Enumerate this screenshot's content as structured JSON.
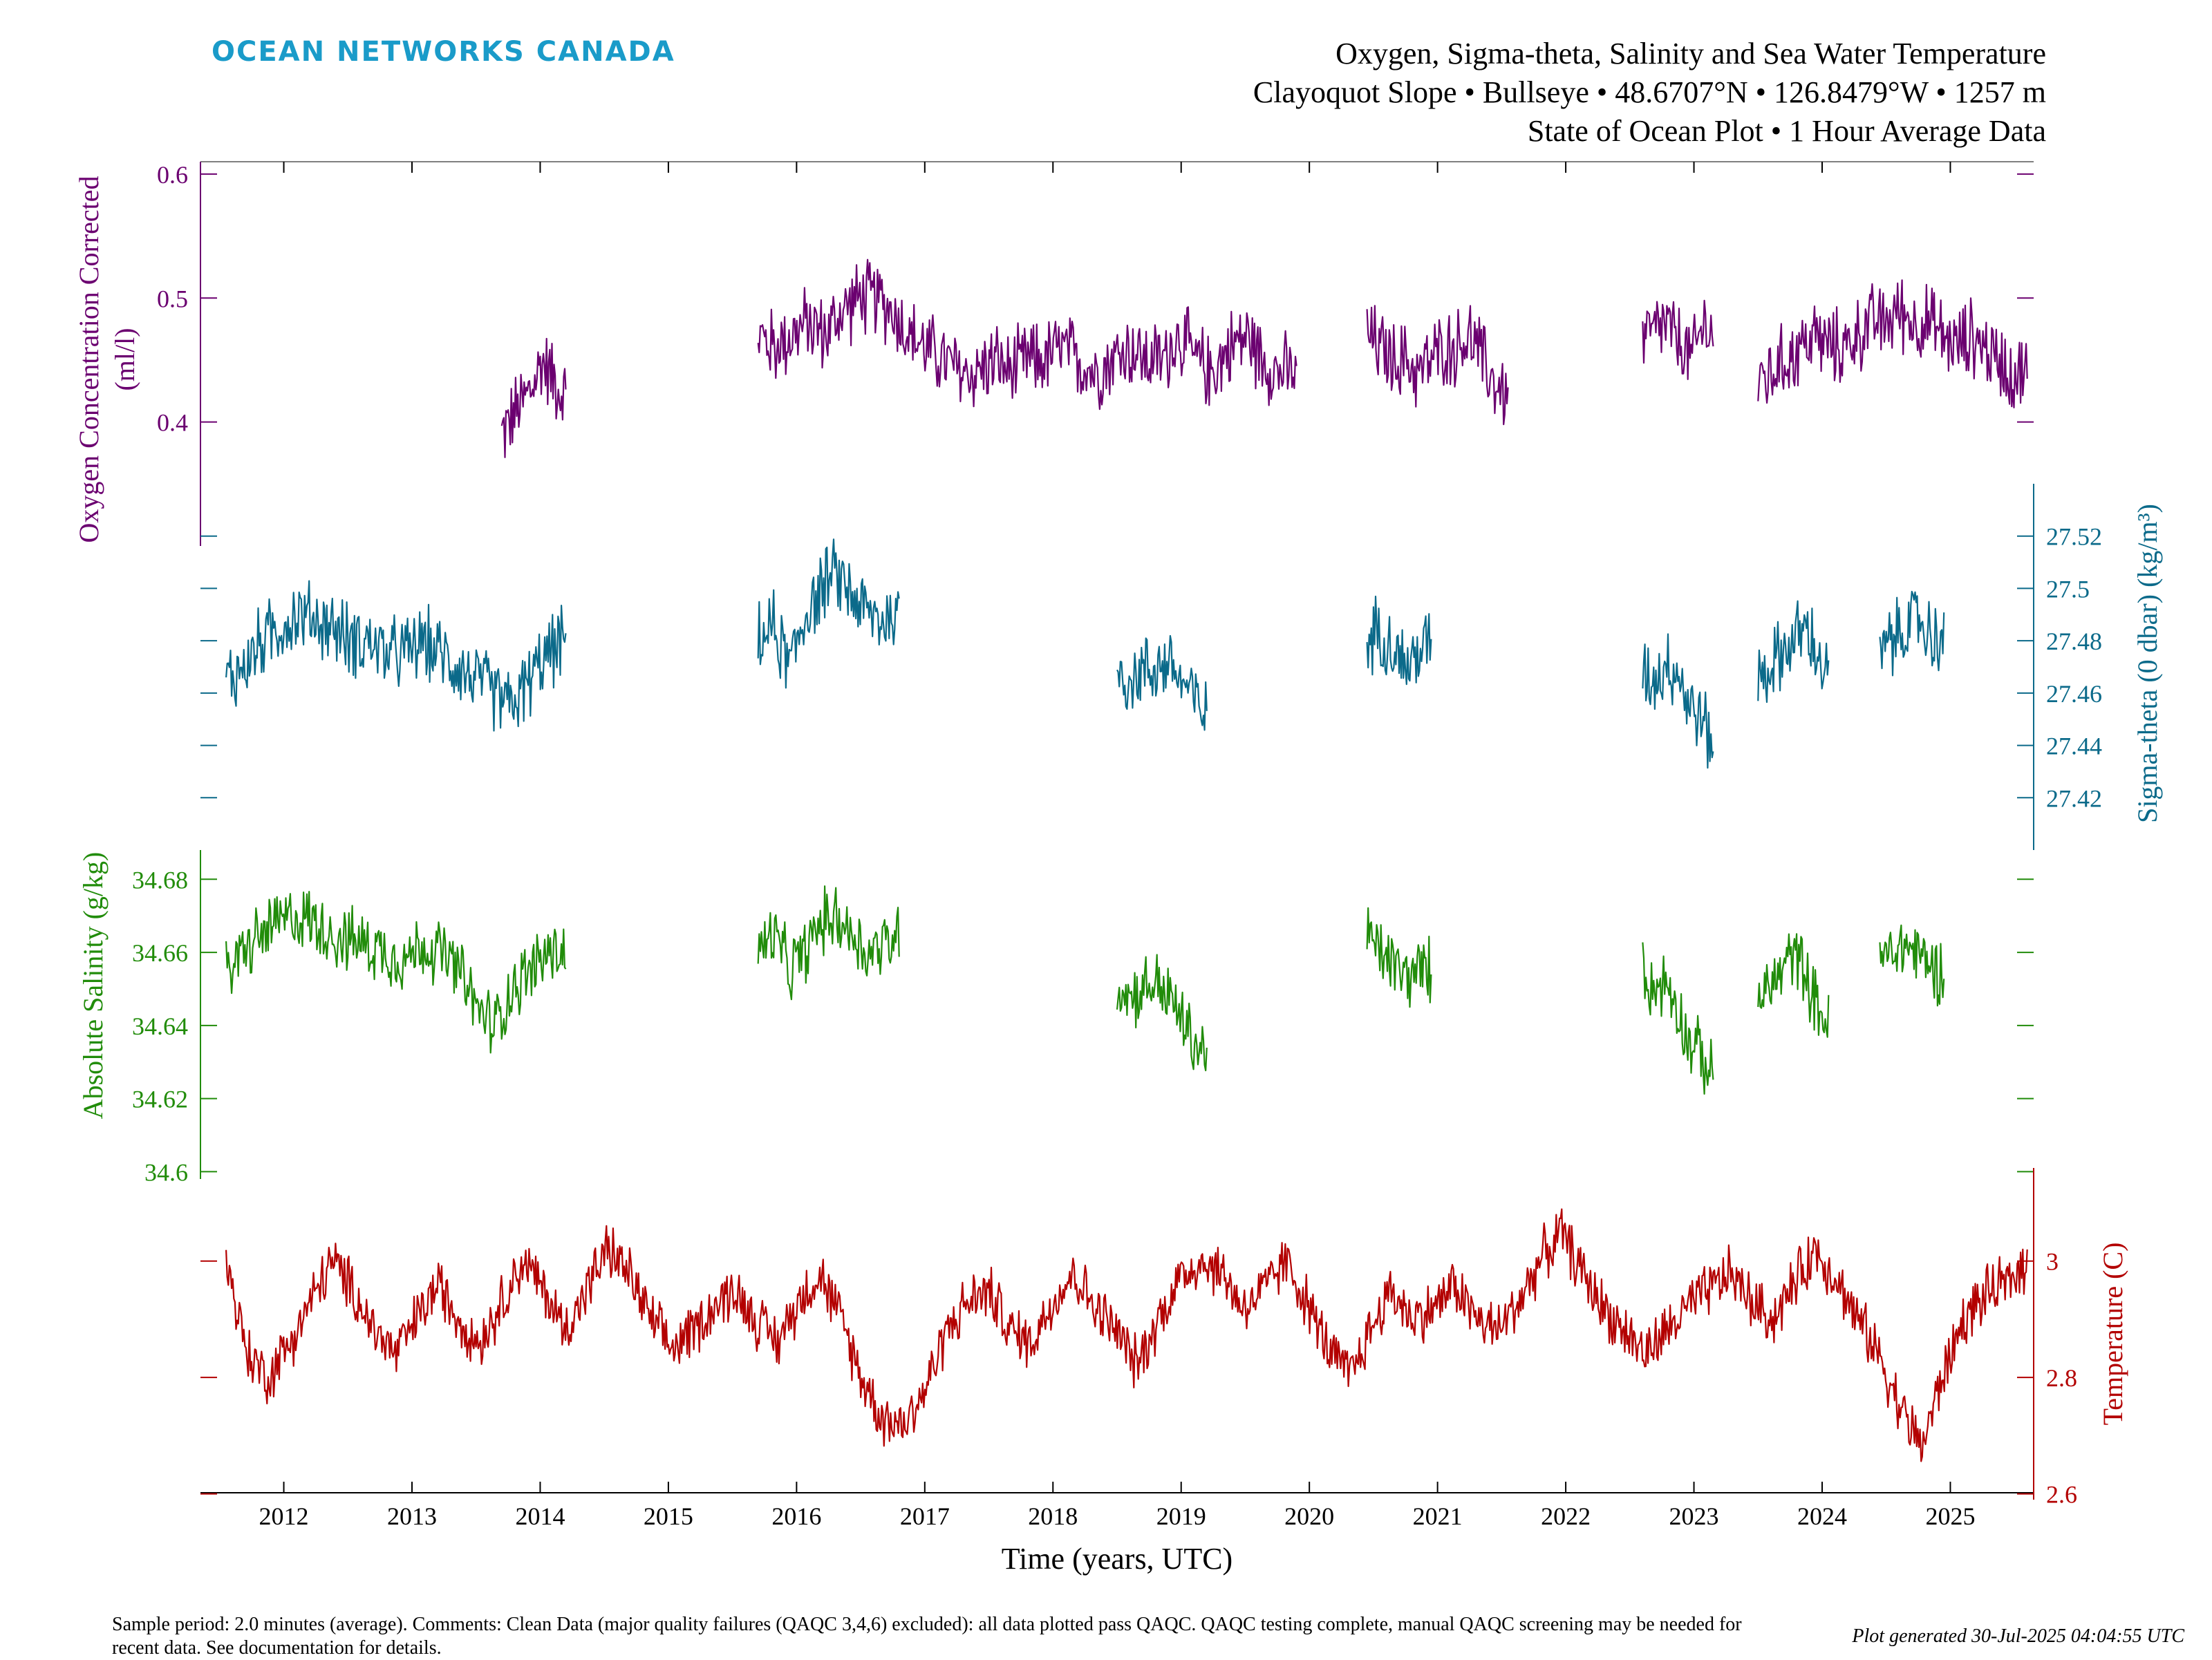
{
  "brand": {
    "text": "OCEAN NETWORKS CANADA",
    "color": "#1a9bc9"
  },
  "title": {
    "line1": "Oxygen, Sigma-theta, Salinity and Sea Water Temperature",
    "line2": "Clayoquot Slope • Bullseye • 48.6707°N • 126.8479°W • 1257 m",
    "line3": "State of Ocean Plot • 1 Hour Average Data"
  },
  "footer": {
    "comment": "Sample period: 2.0 minutes (average). Comments: Clean Data (major quality failures (QAQC 3,4,6) excluded): all data plotted pass QAQC. QAQC testing complete, manual QAQC screening may be needed for recent data. See documentation for details.",
    "generated": "Plot generated 30-Jul-2025 04:04:55 UTC"
  },
  "chart_data": {
    "type": "line",
    "xlabel": "Time (years, UTC)",
    "xlim": [
      2011.35,
      2025.65
    ],
    "xticks": [
      "2012",
      "2013",
      "2014",
      "2015",
      "2016",
      "2017",
      "2018",
      "2019",
      "2020",
      "2021",
      "2022",
      "2023",
      "2024",
      "2025"
    ],
    "grid": false,
    "series": [
      {
        "key": "oxygen",
        "ylabel_line1": "Oxygen Concentration Corrected",
        "ylabel_line2": "(ml/l)",
        "color": "#6b0070",
        "axis_side": "left",
        "ylim": [
          0.3,
          0.61
        ],
        "ticks": [
          "0.4",
          "0.5",
          "0.6"
        ],
        "segments": [
          {
            "start": 2013.7,
            "end": 2014.2,
            "values": [
              0.39,
              0.4,
              0.41,
              0.42,
              0.43,
              0.45,
              0.44,
              0.43,
              0.42
            ]
          },
          {
            "start": 2015.7,
            "end": 2019.9,
            "values": [
              0.47,
              0.46,
              0.47,
              0.48,
              0.47,
              0.49,
              0.5,
              0.5,
              0.49,
              0.47,
              0.46,
              0.45,
              0.44,
              0.44,
              0.45,
              0.44,
              0.45,
              0.45,
              0.46,
              0.45,
              0.44,
              0.45,
              0.46,
              0.45,
              0.45,
              0.47,
              0.45,
              0.44,
              0.46,
              0.47,
              0.45,
              0.44,
              0.44
            ]
          },
          {
            "start": 2020.45,
            "end": 2021.55,
            "values": [
              0.47,
              0.46,
              0.45,
              0.45,
              0.44,
              0.45,
              0.46,
              0.46,
              0.47,
              0.45,
              0.43,
              0.42
            ]
          },
          {
            "start": 2022.6,
            "end": 2023.15,
            "values": [
              0.47,
              0.47,
              0.48,
              0.47,
              0.46,
              0.45,
              0.48,
              0.47
            ]
          },
          {
            "start": 2023.5,
            "end": 2025.6,
            "values": [
              0.43,
              0.44,
              0.45,
              0.46,
              0.47,
              0.46,
              0.46,
              0.47,
              0.48,
              0.48,
              0.49,
              0.48,
              0.48,
              0.47,
              0.46,
              0.47,
              0.46,
              0.45,
              0.44,
              0.44
            ]
          }
        ]
      },
      {
        "key": "sigma",
        "ylabel": "Sigma-theta (0 dbar) (kg/m³)",
        "color": "#0b6a8a",
        "axis_side": "right",
        "ylim": [
          27.4,
          27.54
        ],
        "ticks": [
          "27.42",
          "27.44",
          "27.46",
          "27.48",
          "27.5",
          "27.52"
        ],
        "segments": [
          {
            "start": 2011.55,
            "end": 2014.2,
            "values": [
              27.465,
              27.47,
              27.48,
              27.485,
              27.49,
              27.488,
              27.485,
              27.48,
              27.48,
              27.475,
              27.475,
              27.48,
              27.475,
              27.47,
              27.465,
              27.46,
              27.455,
              27.465,
              27.475,
              27.48
            ]
          },
          {
            "start": 2015.7,
            "end": 2016.8,
            "values": [
              27.48,
              27.485,
              27.47,
              27.49,
              27.5,
              27.505,
              27.498,
              27.49,
              27.488,
              27.49
            ]
          },
          {
            "start": 2018.5,
            "end": 2019.2,
            "values": [
              27.47,
              27.465,
              27.468,
              27.47,
              27.472,
              27.465,
              27.458,
              27.45
            ]
          },
          {
            "start": 2020.45,
            "end": 2020.95,
            "values": [
              27.48,
              27.485,
              27.478,
              27.47,
              27.475,
              27.48
            ]
          },
          {
            "start": 2022.6,
            "end": 2023.15,
            "values": [
              27.47,
              27.465,
              27.472,
              27.468,
              27.455,
              27.45,
              27.44
            ]
          },
          {
            "start": 2023.5,
            "end": 2024.05,
            "values": [
              27.465,
              27.47,
              27.475,
              27.48,
              27.485,
              27.475,
              27.465
            ]
          },
          {
            "start": 2024.45,
            "end": 2024.95,
            "values": [
              27.475,
              27.48,
              27.485,
              27.488,
              27.482,
              27.48
            ]
          }
        ]
      },
      {
        "key": "salinity",
        "ylabel": "Absolute Salinity (g/kg)",
        "color": "#218c0a",
        "axis_side": "left",
        "ylim": [
          34.598,
          34.688
        ],
        "ticks": [
          "34.6",
          "34.62",
          "34.64",
          "34.66",
          "34.68"
        ],
        "segments": [
          {
            "start": 2011.55,
            "end": 2014.2,
            "values": [
              34.655,
              34.66,
              34.665,
              34.668,
              34.67,
              34.668,
              34.665,
              34.663,
              34.662,
              34.66,
              34.658,
              34.662,
              34.66,
              34.655,
              34.645,
              34.64,
              34.65,
              34.655,
              34.66,
              34.66
            ]
          },
          {
            "start": 2015.7,
            "end": 2016.8,
            "values": [
              34.66,
              34.665,
              34.655,
              34.66,
              34.668,
              34.67,
              34.665,
              34.66,
              34.662,
              34.665
            ]
          },
          {
            "start": 2018.5,
            "end": 2019.2,
            "values": [
              34.652,
              34.648,
              34.65,
              34.652,
              34.648,
              34.642,
              34.635,
              34.632
            ]
          },
          {
            "start": 2020.45,
            "end": 2020.95,
            "values": [
              34.665,
              34.66,
              34.657,
              34.653,
              34.655,
              34.655
            ]
          },
          {
            "start": 2022.6,
            "end": 2023.15,
            "values": [
              34.655,
              34.65,
              34.652,
              34.645,
              34.635,
              34.632,
              34.625
            ]
          },
          {
            "start": 2023.5,
            "end": 2024.05,
            "values": [
              34.648,
              34.65,
              34.655,
              34.66,
              34.655,
              34.645,
              34.64
            ]
          },
          {
            "start": 2024.45,
            "end": 2024.95,
            "values": [
              34.658,
              34.66,
              34.662,
              34.66,
              34.656,
              34.655
            ]
          }
        ]
      },
      {
        "key": "temperature",
        "ylabel": "Temperature (C)",
        "color": "#b30000",
        "axis_side": "right",
        "ylim": [
          2.59,
          3.16
        ],
        "ticks": [
          "2.6",
          "2.8",
          "3"
        ],
        "segments": [
          {
            "start": 2011.55,
            "end": 2025.6,
            "values": [
              3.0,
              2.84,
              2.8,
              2.86,
              2.93,
              3.0,
              2.95,
              2.88,
              2.84,
              2.9,
              2.96,
              2.9,
              2.86,
              2.93,
              3.0,
              2.95,
              2.88,
              2.95,
              3.02,
              2.98,
              2.9,
              2.85,
              2.88,
              2.92,
              2.95,
              2.9,
              2.86,
              2.93,
              2.98,
              2.9,
              2.8,
              2.73,
              2.72,
              2.78,
              2.88,
              2.93,
              2.95,
              2.88,
              2.86,
              2.93,
              2.98,
              2.92,
              2.88,
              2.82,
              2.9,
              2.97,
              3.0,
              2.98,
              2.92,
              2.95,
              3.0,
              2.93,
              2.85,
              2.8,
              2.88,
              2.95,
              2.9,
              2.92,
              2.96,
              2.9,
              2.88,
              2.93,
              3.0,
              3.05,
              2.98,
              2.92,
              2.88,
              2.84,
              2.88,
              2.92,
              2.95,
              2.98,
              2.93,
              2.9,
              2.96,
              3.02,
              2.97,
              2.9,
              2.84,
              2.75,
              2.68,
              2.8,
              2.9,
              2.94,
              2.96,
              3.0
            ]
          }
        ]
      }
    ]
  }
}
